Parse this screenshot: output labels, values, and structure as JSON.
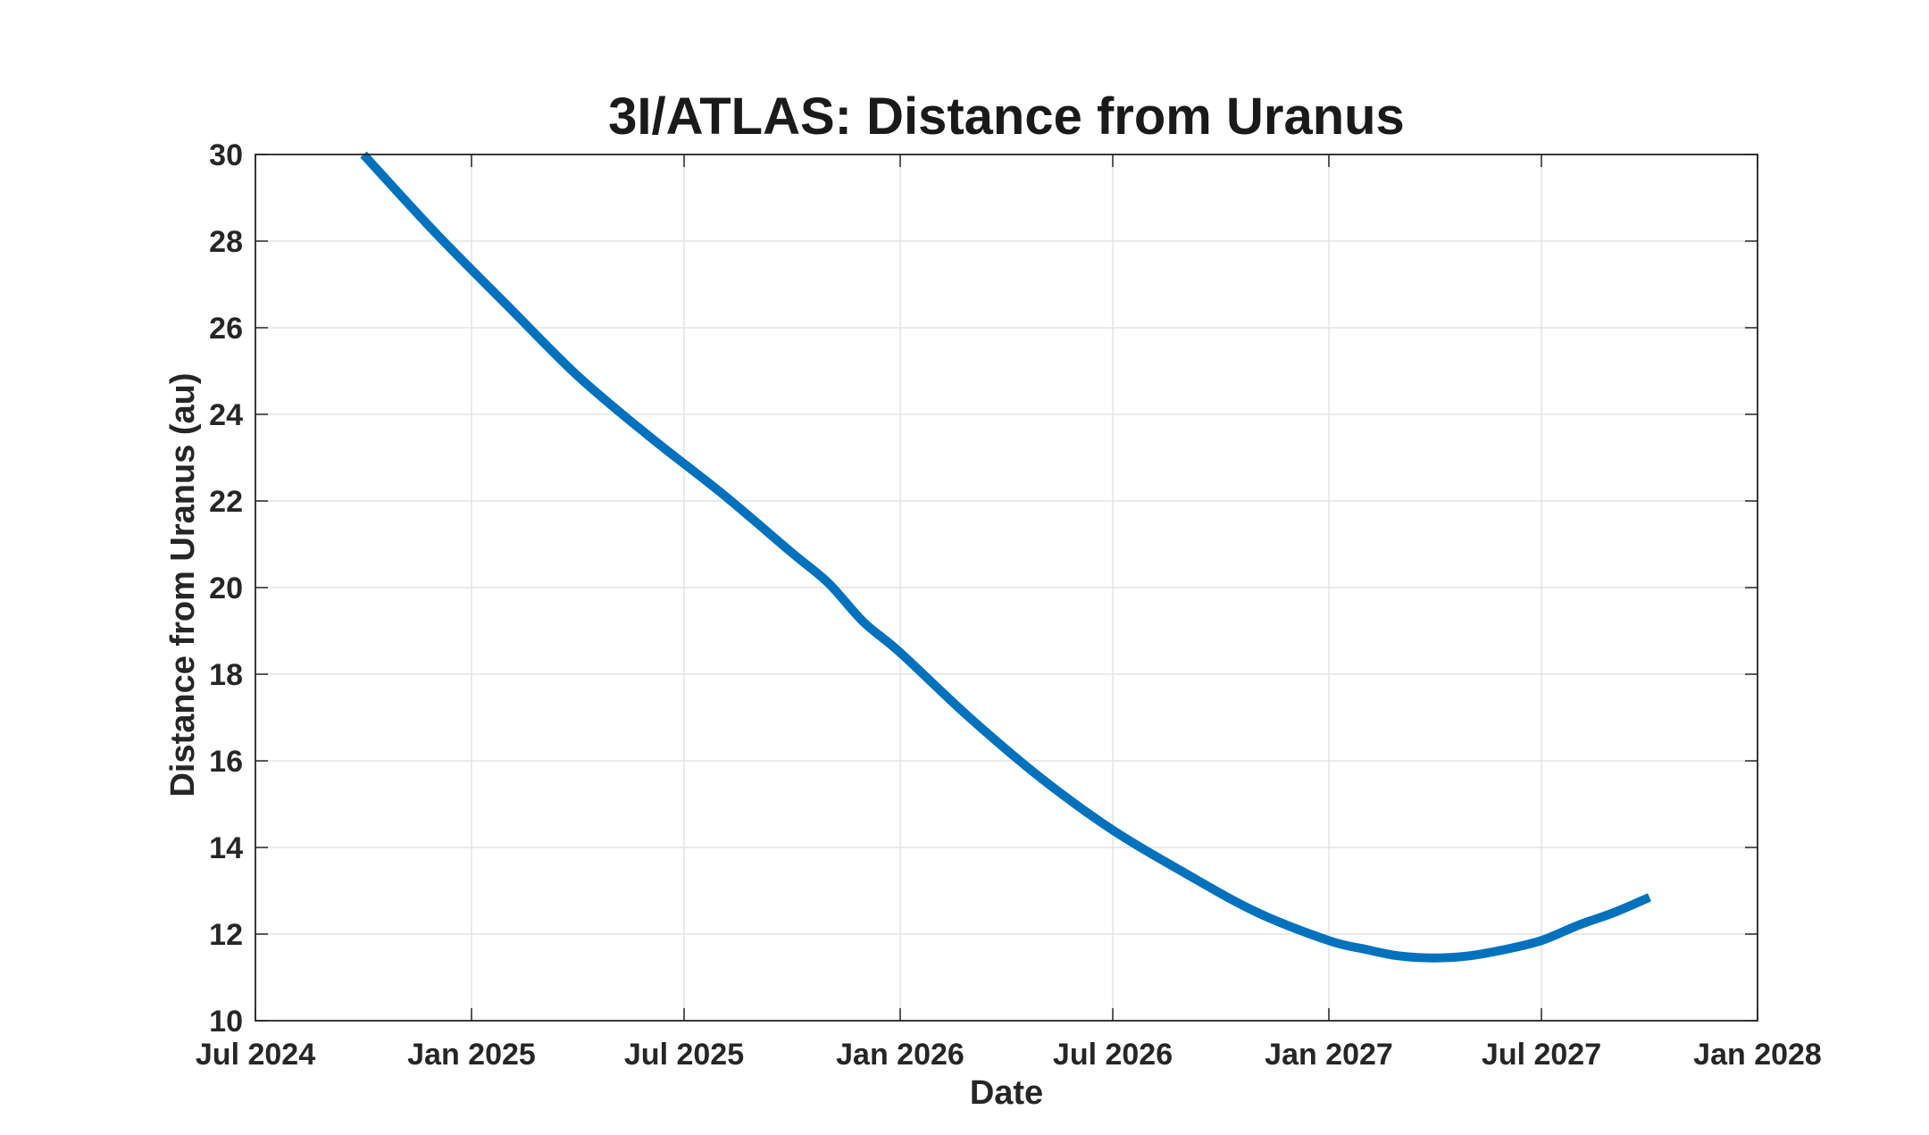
{
  "chart_data": {
    "type": "line",
    "title": "3I/ATLAS: Distance from Uranus",
    "xlabel": "Date",
    "ylabel": "Distance from Uranus (au)",
    "x_axis_type": "date",
    "xlim": [
      "2024-07-01",
      "2028-01-01"
    ],
    "ylim": [
      10,
      30
    ],
    "x_ticks": [
      {
        "date": "2024-07-01",
        "label": "Jul 2024"
      },
      {
        "date": "2025-01-01",
        "label": "Jan 2025"
      },
      {
        "date": "2025-07-01",
        "label": "Jul 2025"
      },
      {
        "date": "2026-01-01",
        "label": "Jan 2026"
      },
      {
        "date": "2026-07-01",
        "label": "Jul 2026"
      },
      {
        "date": "2027-01-01",
        "label": "Jan 2027"
      },
      {
        "date": "2027-07-01",
        "label": "Jul 2027"
      },
      {
        "date": "2028-01-01",
        "label": "Jan 2028"
      }
    ],
    "y_ticks": [
      10,
      12,
      14,
      16,
      18,
      20,
      22,
      24,
      26,
      28,
      30
    ],
    "grid": true,
    "legend": "none",
    "series": [
      {
        "color": "#0072BD",
        "points": [
          {
            "x": "2024-10-01",
            "y": 30.0
          },
          {
            "x": "2024-12-01",
            "y": 28.2
          },
          {
            "x": "2025-02-01",
            "y": 26.5
          },
          {
            "x": "2025-04-01",
            "y": 24.9
          },
          {
            "x": "2025-06-01",
            "y": 23.5
          },
          {
            "x": "2025-08-01",
            "y": 22.2
          },
          {
            "x": "2025-10-01",
            "y": 20.8
          },
          {
            "x": "2025-11-01",
            "y": 20.1
          },
          {
            "x": "2025-12-01",
            "y": 19.2
          },
          {
            "x": "2026-01-01",
            "y": 18.5
          },
          {
            "x": "2026-03-01",
            "y": 17.0
          },
          {
            "x": "2026-05-01",
            "y": 15.6
          },
          {
            "x": "2026-07-01",
            "y": 14.4
          },
          {
            "x": "2026-09-01",
            "y": 13.4
          },
          {
            "x": "2026-11-01",
            "y": 12.5
          },
          {
            "x": "2027-01-01",
            "y": 11.85
          },
          {
            "x": "2027-02-01",
            "y": 11.65
          },
          {
            "x": "2027-03-01",
            "y": 11.5
          },
          {
            "x": "2027-04-01",
            "y": 11.45
          },
          {
            "x": "2027-05-01",
            "y": 11.5
          },
          {
            "x": "2027-06-01",
            "y": 11.65
          },
          {
            "x": "2027-07-01",
            "y": 11.85
          },
          {
            "x": "2027-08-01",
            "y": 12.2
          },
          {
            "x": "2027-09-01",
            "y": 12.5
          },
          {
            "x": "2027-10-01",
            "y": 12.85
          }
        ]
      }
    ]
  }
}
